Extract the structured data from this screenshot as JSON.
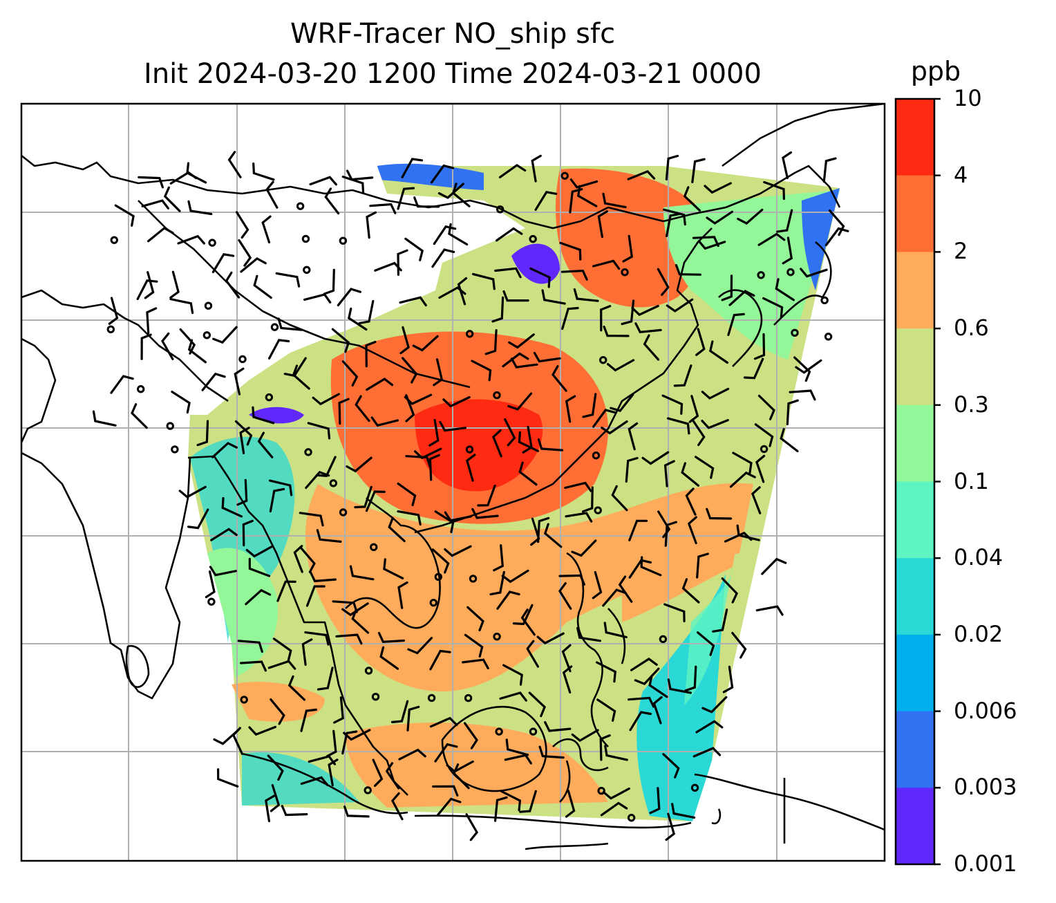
{
  "title": {
    "line1": "WRF-Tracer NO_ship sfc",
    "line2": "Init 2024-03-20 1200 Time 2024-03-21 0000"
  },
  "colorbar": {
    "unit": "ppb",
    "tick_labels": [
      "10",
      "4",
      "2",
      "0.6",
      "0.3",
      "0.1",
      "0.04",
      "0.02",
      "0.006",
      "0.003",
      "0.001"
    ],
    "colors": [
      "#ff2a12",
      "#ff6f35",
      "#ffab5c",
      "#cbe184",
      "#93f79a",
      "#5ff5c2",
      "#2ad8d5",
      "#00b0ec",
      "#3172f3",
      "#6128fc"
    ]
  },
  "map": {
    "variable": "NO_ship",
    "level": "sfc",
    "units": "ppb",
    "gridlines": true,
    "overlay": "wind-barbs",
    "land_outline_color": "#000000",
    "grid_color": "#b0b0b0"
  }
}
